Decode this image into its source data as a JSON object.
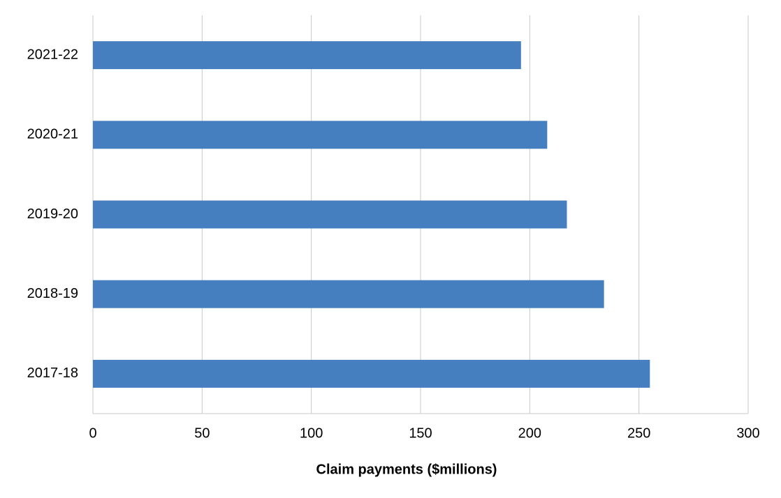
{
  "chart_data": {
    "type": "hbar",
    "xlabel": "Claim payments ($millions)",
    "categories": [
      "2021-22",
      "2020-21",
      "2019-20",
      "2018-19",
      "2017-18"
    ],
    "values": [
      196,
      208,
      217,
      234,
      255
    ],
    "color": "#467fc0",
    "xlim": [
      0,
      300
    ],
    "xticks": [
      0,
      50,
      100,
      150,
      200,
      250,
      300
    ],
    "grid": true
  }
}
